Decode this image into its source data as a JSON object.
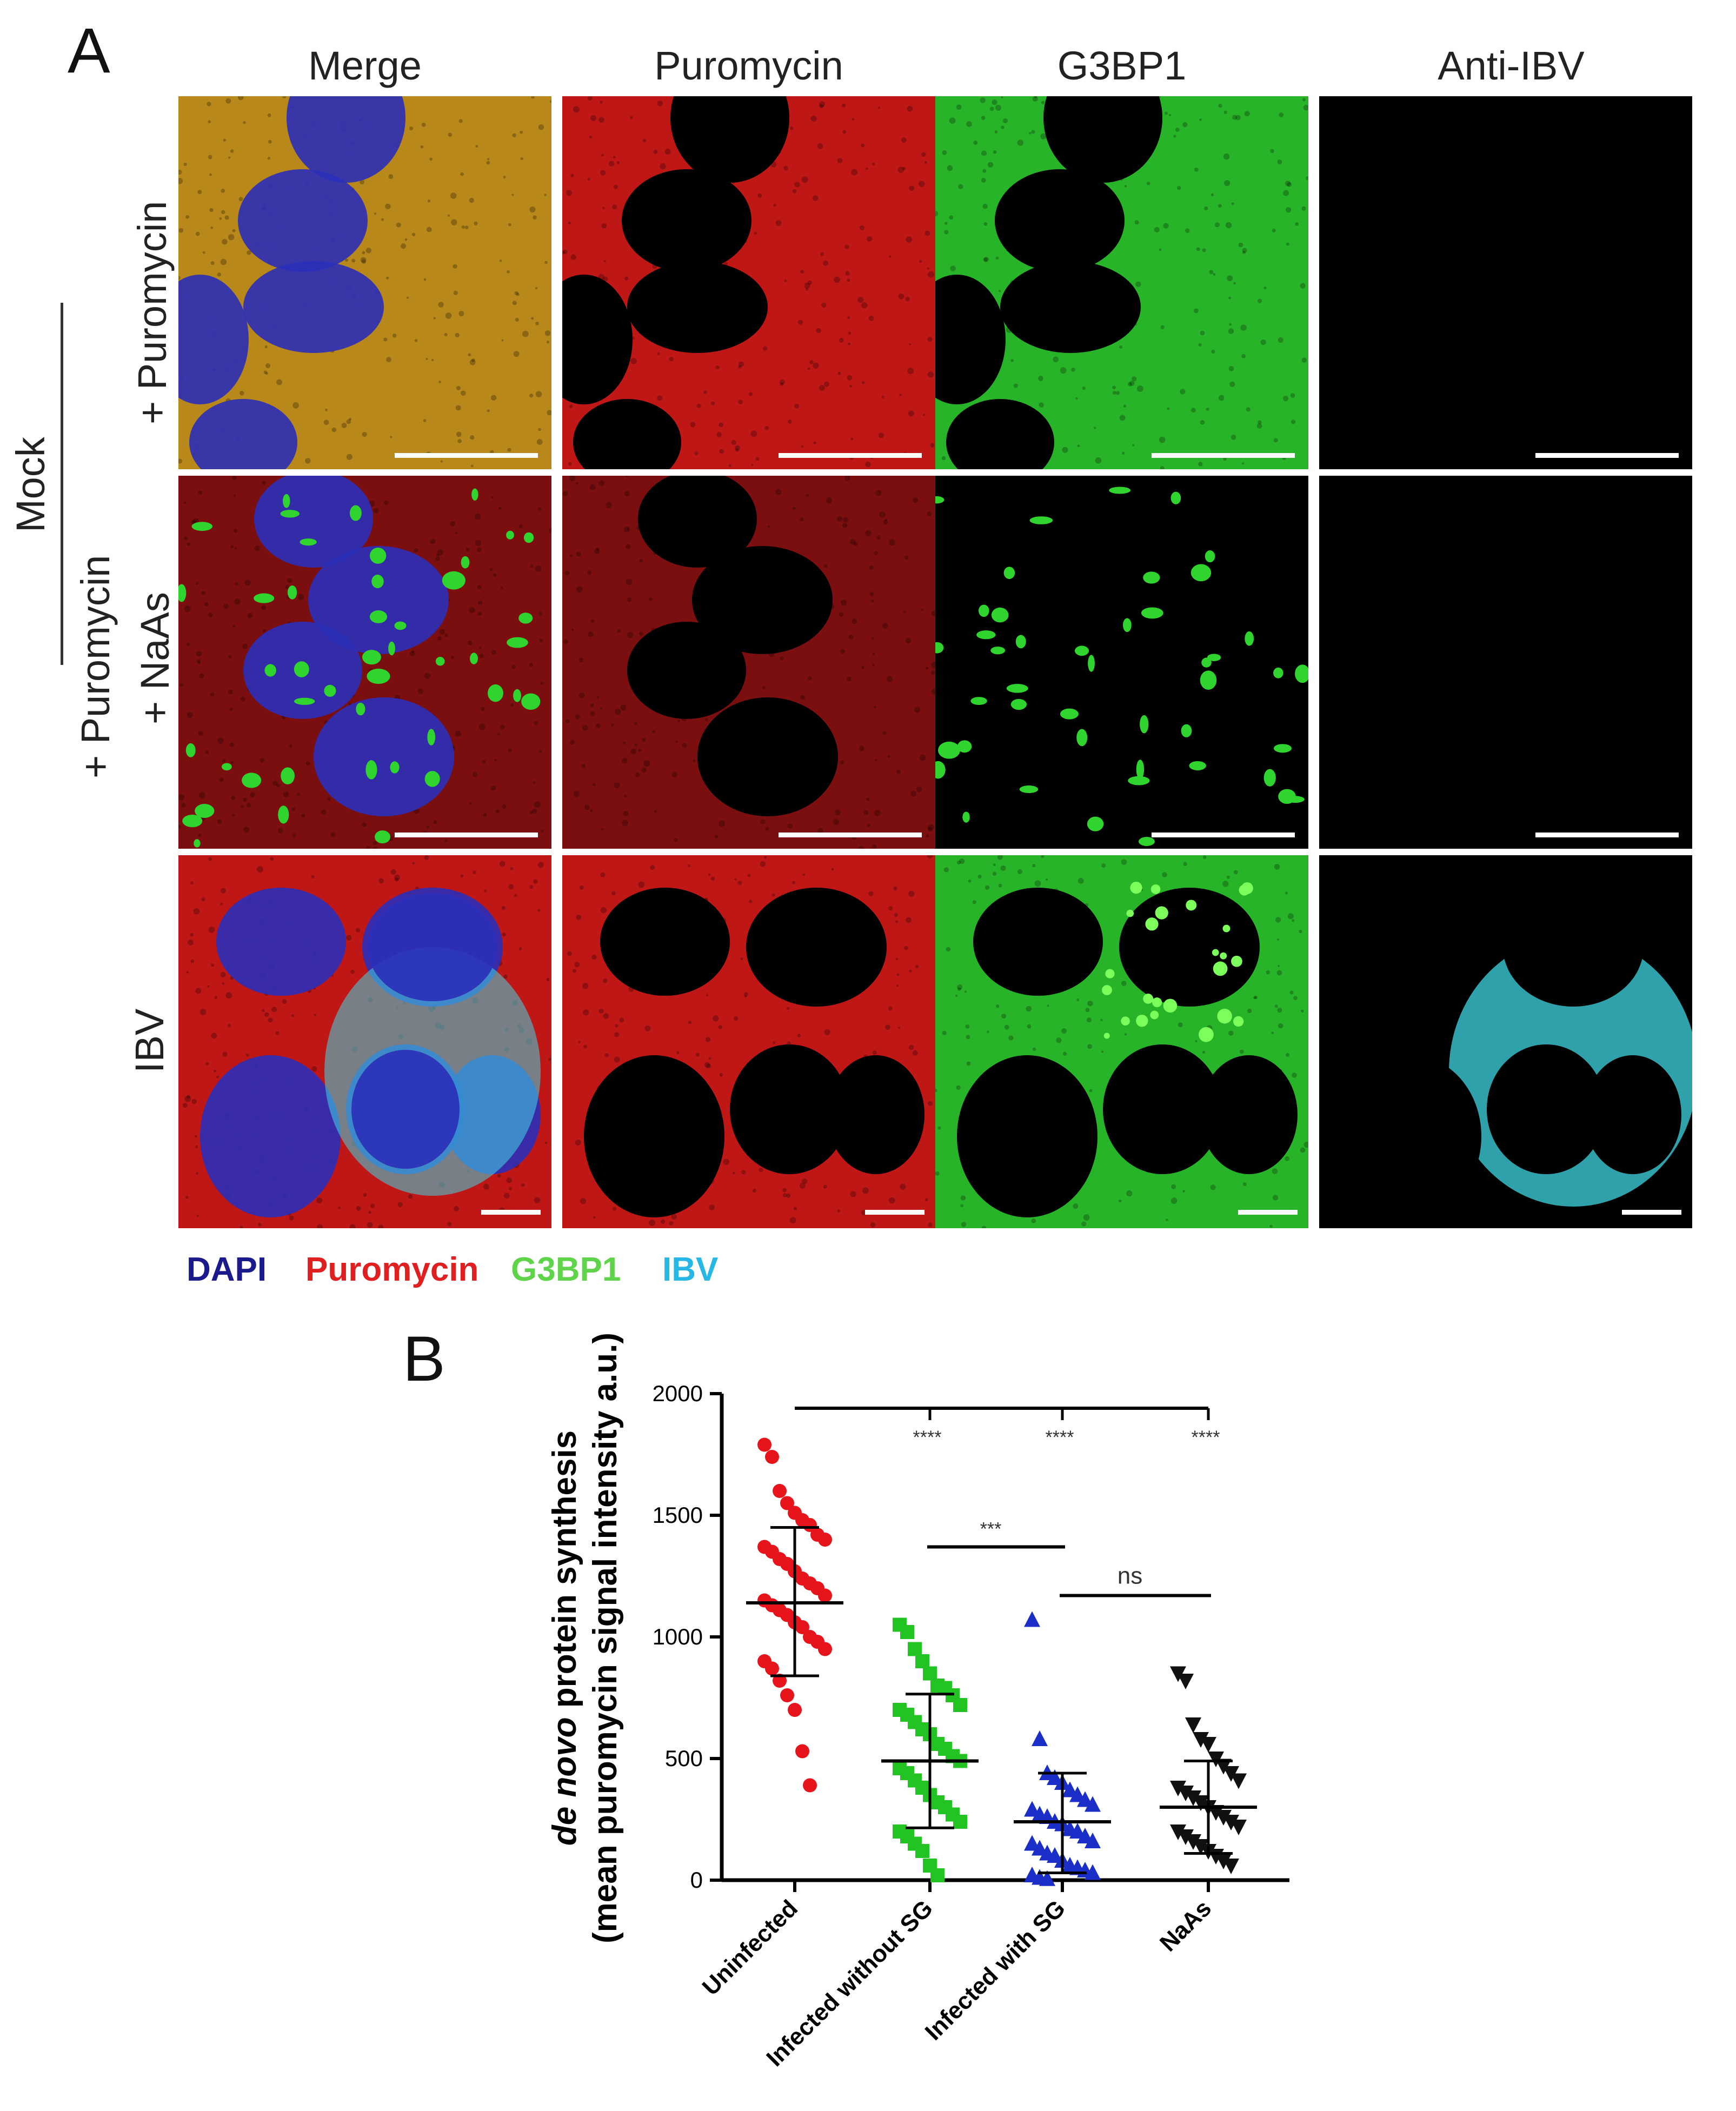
{
  "panel_a": {
    "label": "A",
    "columns": [
      "Merge",
      "Puromycin",
      "G3BP1",
      "Anti-IBV"
    ],
    "rows": {
      "mock_group": "Mock",
      "row1": "+ Puromycin",
      "row2_line1": "+ Puromycin",
      "row2_line2": "+ NaAs",
      "row3": "IBV"
    },
    "legend": [
      {
        "text": "DAPI",
        "color": "#1a1a8c"
      },
      {
        "text": "Puromycin",
        "color": "#e02020"
      },
      {
        "text": "G3BP1",
        "color": "#5fd34a"
      },
      {
        "text": "IBV",
        "color": "#26b7e6"
      }
    ],
    "channel_colors": {
      "dapi": "#2b2fb8",
      "puromycin": "#e01a1a",
      "g3bp1": "#2fd42f",
      "ibv": "#3fd7e3"
    }
  },
  "panel_b": {
    "label": "B"
  },
  "chart_data": {
    "type": "scatter",
    "ylabel_italic": "de novo",
    "ylabel_rest": " protein synthesis",
    "ylabel_line2": "(mean puromycin signal intensity a.u.)",
    "ylim": [
      0,
      2000
    ],
    "yticks": [
      "0",
      "500",
      "1000",
      "1500",
      "2000"
    ],
    "categories": [
      "Uninfected",
      "Infected without SG",
      "Infected with SG",
      "NaAs"
    ],
    "series": [
      {
        "category": "Uninfected",
        "marker": "circle",
        "color": "#e8141c",
        "mean": 1140,
        "sd_low": 840,
        "sd_high": 1450,
        "values": [
          1790,
          1740,
          1600,
          1550,
          1510,
          1480,
          1460,
          1420,
          1400,
          1370,
          1350,
          1320,
          1300,
          1270,
          1240,
          1220,
          1200,
          1170,
          1150,
          1130,
          1110,
          1090,
          1060,
          1040,
          1000,
          980,
          950,
          900,
          870,
          820,
          760,
          700,
          530,
          390
        ]
      },
      {
        "category": "Infected without SG",
        "marker": "square",
        "color": "#22c322",
        "mean": 490,
        "sd_low": 215,
        "sd_high": 765,
        "values": [
          1050,
          1020,
          950,
          900,
          850,
          800,
          790,
          760,
          720,
          700,
          680,
          650,
          620,
          600,
          560,
          540,
          510,
          490,
          460,
          440,
          410,
          380,
          350,
          320,
          300,
          270,
          240,
          200,
          180,
          150,
          120,
          60,
          20
        ]
      },
      {
        "category": "Infected with SG",
        "marker": "triangle-up",
        "color": "#1c2ec8",
        "mean": 240,
        "sd_low": 30,
        "sd_high": 440,
        "values": [
          1070,
          580,
          440,
          420,
          400,
          370,
          350,
          330,
          310,
          290,
          270,
          260,
          240,
          230,
          210,
          200,
          180,
          160,
          150,
          130,
          110,
          100,
          80,
          60,
          50,
          40,
          30,
          20,
          10,
          5
        ]
      },
      {
        "category": "NaAs",
        "marker": "triangle-down",
        "color": "#111111",
        "mean": 300,
        "sd_low": 110,
        "sd_high": 490,
        "values": [
          850,
          820,
          640,
          580,
          560,
          500,
          470,
          440,
          410,
          380,
          360,
          340,
          320,
          300,
          280,
          260,
          240,
          220,
          200,
          180,
          160,
          140,
          120,
          100,
          80,
          60
        ]
      }
    ],
    "significance": [
      {
        "from": "Uninfected",
        "to": "Infected without SG",
        "label": "****"
      },
      {
        "from": "Uninfected",
        "to": "Infected with SG",
        "label": "****"
      },
      {
        "from": "Uninfected",
        "to": "NaAs",
        "label": "****"
      },
      {
        "from": "Infected without SG",
        "to": "Infected with SG",
        "label": "***"
      },
      {
        "from": "Infected with SG",
        "to": "NaAs",
        "label": "ns"
      }
    ]
  }
}
